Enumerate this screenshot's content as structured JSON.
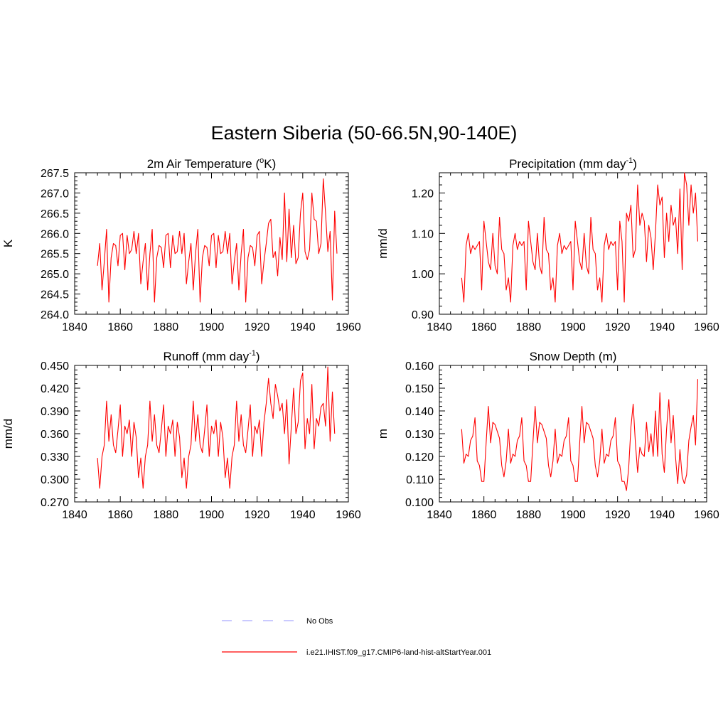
{
  "figure": {
    "title": "Eastern Siberia (50-66.5N,90-140E)"
  },
  "legend": [
    {
      "label": "No Obs",
      "color": "#aaaaff",
      "style": "dashed"
    },
    {
      "label": "i.e21.IHIST.f09_g17.CMIP6-land-hist-altStartYear.001",
      "color": "#ff0000",
      "style": "solid"
    }
  ],
  "chart_data": [
    {
      "type": "line",
      "title": "2m Air Temperature (",
      "title_sup": "o",
      "title_tail": "K)",
      "ylabel": "K",
      "xlim": [
        1840,
        1960
      ],
      "ylim": [
        264.0,
        267.5
      ],
      "xticks": [
        "1840",
        "1860",
        "1880",
        "1900",
        "1920",
        "1940",
        "1960"
      ],
      "yticks": [
        "264.0",
        "264.5",
        "265.0",
        "265.5",
        "266.0",
        "266.5",
        "267.0",
        "267.5"
      ],
      "x_start": 1850,
      "series": [
        {
          "color": "#ff0000",
          "values": [
            265.2,
            265.75,
            264.6,
            265.3,
            266.1,
            264.3,
            265.4,
            265.75,
            265.7,
            265.2,
            265.95,
            266.0,
            265.1,
            265.95,
            265.5,
            265.6,
            266.05,
            265.5,
            266.0,
            264.75,
            265.3,
            265.75,
            264.6,
            265.5,
            266.1,
            264.3,
            265.4,
            265.7,
            265.65,
            265.15,
            265.95,
            266.0,
            265.15,
            265.95,
            265.5,
            265.55,
            266.05,
            265.5,
            266.0,
            264.75,
            265.3,
            265.75,
            264.6,
            265.5,
            266.1,
            264.3,
            265.4,
            265.7,
            265.65,
            265.2,
            265.95,
            266.0,
            265.15,
            265.95,
            265.5,
            265.55,
            266.05,
            265.5,
            266.0,
            264.75,
            265.3,
            265.75,
            264.6,
            265.5,
            266.1,
            264.3,
            265.4,
            265.7,
            265.65,
            265.2,
            265.95,
            266.05,
            264.75,
            265.3,
            265.75,
            266.25,
            266.35,
            265.4,
            265.55,
            264.95,
            265.9,
            265.35,
            267.0,
            265.3,
            266.6,
            265.4,
            266.2,
            265.25,
            265.4,
            266.5,
            267.0,
            265.55,
            265.35,
            265.6,
            267.0,
            266.35,
            266.3,
            265.5,
            265.75,
            267.35,
            266.5,
            265.55,
            266.05,
            264.35,
            266.55,
            265.5
          ]
        }
      ]
    },
    {
      "type": "line",
      "title": "Precipitation (mm day",
      "title_sup": "-1",
      "title_tail": ")",
      "ylabel": "mm/d",
      "xlim": [
        1840,
        1960
      ],
      "ylim": [
        0.9,
        1.25
      ],
      "xticks": [
        "1840",
        "1860",
        "1880",
        "1900",
        "1920",
        "1940",
        "1960"
      ],
      "yticks": [
        "0.90",
        "1.00",
        "1.10",
        "1.20"
      ],
      "ytick_values": [
        0.9,
        1.0,
        1.1,
        1.2
      ],
      "x_start": 1850,
      "series": [
        {
          "color": "#ff0000",
          "values": [
            0.99,
            0.93,
            1.07,
            1.1,
            1.05,
            1.07,
            1.06,
            1.07,
            1.08,
            0.96,
            1.13,
            1.08,
            1.03,
            1.01,
            1.1,
            1.02,
            1.0,
            1.14,
            1.06,
            1.05,
            0.96,
            0.99,
            0.93,
            1.07,
            1.1,
            1.06,
            1.08,
            1.07,
            1.08,
            0.96,
            1.13,
            1.08,
            1.03,
            1.01,
            1.1,
            1.02,
            1.0,
            1.14,
            1.06,
            1.05,
            0.96,
            0.99,
            0.93,
            1.07,
            1.1,
            1.05,
            1.07,
            1.06,
            1.07,
            1.08,
            0.96,
            1.13,
            1.08,
            1.03,
            1.01,
            1.1,
            1.02,
            1.0,
            1.14,
            1.06,
            1.05,
            0.96,
            0.99,
            0.93,
            1.07,
            1.1,
            1.06,
            1.08,
            1.07,
            1.08,
            0.96,
            1.13,
            1.08,
            0.93,
            1.15,
            1.13,
            1.17,
            1.04,
            1.06,
            1.22,
            1.12,
            1.15,
            1.13,
            1.03,
            1.12,
            1.09,
            1.01,
            1.1,
            1.22,
            1.17,
            1.19,
            1.04,
            1.15,
            1.08,
            1.17,
            1.12,
            1.14,
            1.05,
            1.21,
            1.01,
            1.25,
            1.22,
            1.12,
            1.22,
            1.15,
            1.2,
            1.08
          ]
        }
      ]
    },
    {
      "type": "line",
      "title": "Runoff (mm day",
      "title_sup": "-1",
      "title_tail": ")",
      "ylabel": "mm/d",
      "xlim": [
        1840,
        1960
      ],
      "ylim": [
        0.27,
        0.45
      ],
      "xticks": [
        "1840",
        "1860",
        "1880",
        "1900",
        "1920",
        "1940",
        "1960"
      ],
      "yticks": [
        "0.270",
        "0.300",
        "0.330",
        "0.360",
        "0.390",
        "0.420",
        "0.450"
      ],
      "ytick_values": [
        0.27,
        0.3,
        0.33,
        0.36,
        0.39,
        0.42,
        0.45
      ],
      "x_start": 1850,
      "series": [
        {
          "color": "#ff0000",
          "values": [
            0.328,
            0.288,
            0.33,
            0.345,
            0.403,
            0.35,
            0.385,
            0.345,
            0.335,
            0.365,
            0.398,
            0.33,
            0.37,
            0.36,
            0.378,
            0.33,
            0.375,
            0.355,
            0.302,
            0.328,
            0.288,
            0.33,
            0.345,
            0.403,
            0.35,
            0.385,
            0.345,
            0.335,
            0.365,
            0.398,
            0.33,
            0.37,
            0.36,
            0.378,
            0.33,
            0.375,
            0.355,
            0.302,
            0.328,
            0.288,
            0.33,
            0.345,
            0.403,
            0.35,
            0.385,
            0.345,
            0.335,
            0.365,
            0.398,
            0.33,
            0.37,
            0.36,
            0.378,
            0.33,
            0.375,
            0.355,
            0.302,
            0.328,
            0.288,
            0.33,
            0.345,
            0.403,
            0.35,
            0.385,
            0.345,
            0.335,
            0.365,
            0.398,
            0.33,
            0.37,
            0.36,
            0.378,
            0.33,
            0.375,
            0.4,
            0.433,
            0.4,
            0.38,
            0.425,
            0.41,
            0.39,
            0.4,
            0.36,
            0.405,
            0.32,
            0.37,
            0.42,
            0.36,
            0.375,
            0.43,
            0.44,
            0.34,
            0.38,
            0.36,
            0.425,
            0.34,
            0.38,
            0.37,
            0.395,
            0.4,
            0.37,
            0.448,
            0.35,
            0.415,
            0.36
          ]
        }
      ]
    },
    {
      "type": "line",
      "title": "Snow Depth (m)",
      "title_sup": "",
      "title_tail": "",
      "ylabel": "m",
      "xlim": [
        1840,
        1960
      ],
      "ylim": [
        0.1,
        0.16
      ],
      "xticks": [
        "1840",
        "1860",
        "1880",
        "1900",
        "1920",
        "1940",
        "1960"
      ],
      "yticks": [
        "0.100",
        "0.110",
        "0.120",
        "0.130",
        "0.140",
        "0.150",
        "0.160"
      ],
      "ytick_values": [
        0.1,
        0.11,
        0.12,
        0.13,
        0.14,
        0.15,
        0.16
      ],
      "x_start": 1850,
      "series": [
        {
          "color": "#ff0000",
          "values": [
            0.132,
            0.117,
            0.121,
            0.12,
            0.127,
            0.129,
            0.137,
            0.118,
            0.116,
            0.109,
            0.109,
            0.126,
            0.142,
            0.126,
            0.135,
            0.134,
            0.131,
            0.128,
            0.116,
            0.111,
            0.118,
            0.132,
            0.117,
            0.121,
            0.12,
            0.127,
            0.129,
            0.137,
            0.118,
            0.116,
            0.109,
            0.109,
            0.126,
            0.142,
            0.126,
            0.135,
            0.134,
            0.131,
            0.128,
            0.116,
            0.111,
            0.118,
            0.132,
            0.117,
            0.121,
            0.12,
            0.127,
            0.129,
            0.137,
            0.118,
            0.116,
            0.109,
            0.109,
            0.126,
            0.142,
            0.126,
            0.135,
            0.134,
            0.131,
            0.128,
            0.116,
            0.111,
            0.118,
            0.132,
            0.117,
            0.121,
            0.12,
            0.127,
            0.129,
            0.137,
            0.118,
            0.116,
            0.109,
            0.109,
            0.105,
            0.115,
            0.133,
            0.143,
            0.126,
            0.113,
            0.124,
            0.121,
            0.12,
            0.135,
            0.122,
            0.13,
            0.12,
            0.14,
            0.12,
            0.148,
            0.121,
            0.113,
            0.132,
            0.145,
            0.126,
            0.138,
            0.12,
            0.108,
            0.123,
            0.111,
            0.108,
            0.112,
            0.127,
            0.133,
            0.138,
            0.125,
            0.154
          ]
        }
      ]
    }
  ]
}
